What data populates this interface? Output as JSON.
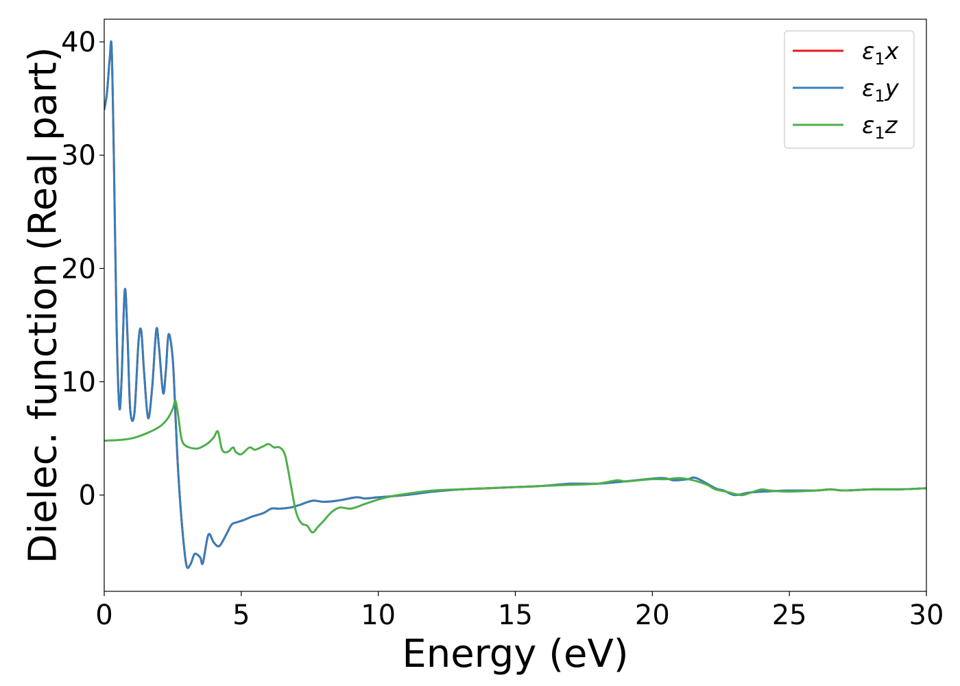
{
  "chart_data": {
    "type": "line",
    "title": "",
    "xlabel": "Energy (eV)",
    "ylabel": "Dielec. function (Real part)",
    "xlim": [
      0,
      30
    ],
    "ylim": [
      -8.5,
      42
    ],
    "xticks": [
      0,
      5,
      10,
      15,
      20,
      25,
      30
    ],
    "xtick_labels": [
      "0",
      "5",
      "10",
      "15",
      "20",
      "25",
      "30"
    ],
    "yticks": [
      0,
      10,
      20,
      30,
      40
    ],
    "ytick_labels": [
      "0",
      "10",
      "20",
      "30",
      "40"
    ],
    "grid": false,
    "legend_position": "top-right",
    "series": [
      {
        "name": "ε₁x",
        "legend_main": "ε",
        "legend_sub": "1",
        "legend_tail": "x",
        "color": "#e41a1c",
        "x": [
          0,
          0.1,
          0.2,
          0.27,
          0.35,
          0.45,
          0.55,
          0.63,
          0.75,
          0.85,
          0.95,
          1.1,
          1.25,
          1.35,
          1.45,
          1.6,
          1.75,
          1.9,
          2.0,
          2.15,
          2.25,
          2.35,
          2.5,
          2.6,
          2.7,
          2.85,
          3.0,
          3.15,
          3.3,
          3.5,
          3.6,
          3.8,
          4.0,
          4.2,
          4.45,
          4.65,
          4.85,
          5.1,
          5.4,
          5.8,
          6.1,
          6.4,
          6.8,
          7.1,
          7.6,
          8.0,
          8.5,
          9.2,
          9.5,
          10.0,
          11.0,
          12.0,
          13.0,
          14.0,
          15.0,
          16.0,
          17.0,
          18.0,
          19.0,
          20.3,
          20.8,
          21.3,
          21.6,
          22.3,
          22.6,
          23.0,
          23.5,
          24.0,
          25.0,
          26.0,
          26.5,
          27.0,
          28.0,
          29.0,
          30.0
        ],
        "y": [
          34,
          35.5,
          38.5,
          39.5,
          30,
          15,
          7.8,
          10,
          18.1,
          14,
          7.5,
          7.2,
          13.5,
          14.5,
          11,
          6.8,
          9.5,
          14.6,
          13,
          9,
          11,
          14.2,
          12,
          7,
          2,
          -3,
          -6.2,
          -6.1,
          -5.2,
          -5.5,
          -6,
          -3.5,
          -4.2,
          -4.5,
          -3.5,
          -2.6,
          -2.4,
          -2.2,
          -1.9,
          -1.6,
          -1.2,
          -1.2,
          -1.1,
          -0.9,
          -0.5,
          -0.6,
          -0.5,
          -0.2,
          -0.3,
          -0.2,
          0,
          0.3,
          0.5,
          0.6,
          0.7,
          0.8,
          1.0,
          1.0,
          1.2,
          1.5,
          1.3,
          1.4,
          1.5,
          0.6,
          0.4,
          0.0,
          0.2,
          0.3,
          0.4,
          0.4,
          0.5,
          0.4,
          0.5,
          0.5,
          0.6
        ]
      },
      {
        "name": "ε₁y",
        "legend_main": "ε",
        "legend_sub": "1",
        "legend_tail": "y",
        "color": "#377eb8",
        "x": [
          0,
          0.1,
          0.2,
          0.27,
          0.35,
          0.45,
          0.55,
          0.63,
          0.75,
          0.85,
          0.95,
          1.1,
          1.25,
          1.35,
          1.45,
          1.6,
          1.75,
          1.9,
          2.0,
          2.15,
          2.25,
          2.35,
          2.5,
          2.6,
          2.7,
          2.85,
          3.0,
          3.15,
          3.3,
          3.5,
          3.6,
          3.8,
          4.0,
          4.2,
          4.45,
          4.65,
          4.85,
          5.1,
          5.4,
          5.8,
          6.1,
          6.4,
          6.8,
          7.1,
          7.6,
          8.0,
          8.5,
          9.2,
          9.5,
          10.0,
          11.0,
          12.0,
          13.0,
          14.0,
          15.0,
          16.0,
          17.0,
          18.0,
          19.0,
          20.3,
          20.8,
          21.3,
          21.6,
          22.3,
          22.6,
          23.0,
          23.5,
          24.0,
          25.0,
          26.0,
          26.5,
          27.0,
          28.0,
          29.0,
          30.0
        ],
        "y": [
          34,
          35.5,
          38.5,
          39.5,
          30,
          15,
          7.8,
          10,
          18.1,
          14,
          7.5,
          7.2,
          13.5,
          14.5,
          11,
          6.8,
          9.5,
          14.6,
          13,
          9,
          11,
          14.2,
          12,
          7,
          2,
          -3,
          -6.2,
          -6.1,
          -5.2,
          -5.5,
          -6,
          -3.5,
          -4.2,
          -4.5,
          -3.5,
          -2.6,
          -2.4,
          -2.2,
          -1.9,
          -1.6,
          -1.2,
          -1.2,
          -1.1,
          -0.9,
          -0.5,
          -0.6,
          -0.5,
          -0.2,
          -0.3,
          -0.2,
          0,
          0.3,
          0.5,
          0.6,
          0.7,
          0.8,
          1.0,
          1.0,
          1.2,
          1.5,
          1.3,
          1.4,
          1.5,
          0.6,
          0.4,
          0.0,
          0.2,
          0.3,
          0.4,
          0.4,
          0.5,
          0.4,
          0.5,
          0.5,
          0.6
        ]
      },
      {
        "name": "ε₁z",
        "legend_main": "ε",
        "legend_sub": "1",
        "legend_tail": "z",
        "color": "#4daf4a",
        "x": [
          0,
          0.5,
          1.0,
          1.5,
          2.0,
          2.3,
          2.5,
          2.6,
          2.7,
          2.8,
          2.9,
          3.1,
          3.4,
          3.6,
          3.8,
          4.0,
          4.15,
          4.3,
          4.5,
          4.7,
          4.8,
          5.0,
          5.3,
          5.5,
          5.8,
          6.0,
          6.2,
          6.4,
          6.6,
          6.8,
          7.0,
          7.2,
          7.4,
          7.6,
          7.8,
          8.0,
          8.3,
          8.6,
          9.0,
          9.5,
          10.0,
          10.5,
          11.0,
          12.0,
          13.0,
          14.0,
          15.0,
          16.0,
          17.0,
          18.0,
          18.7,
          19.0,
          19.5,
          20.0,
          20.5,
          21.0,
          21.5,
          22.0,
          22.3,
          22.7,
          23.0,
          23.3,
          23.7,
          24.0,
          24.3,
          25.0,
          26.0,
          26.5,
          27.0,
          28.0,
          29.0,
          30.0
        ],
        "y": [
          4.8,
          4.85,
          5.0,
          5.4,
          6.0,
          6.7,
          7.6,
          8.3,
          7.0,
          5.2,
          4.5,
          4.2,
          4.1,
          4.3,
          4.6,
          5.1,
          5.6,
          4.0,
          3.8,
          4.2,
          3.8,
          3.6,
          4.2,
          4.0,
          4.3,
          4.5,
          4.2,
          4.2,
          3.5,
          1.0,
          -1.5,
          -2.5,
          -2.7,
          -3.3,
          -2.8,
          -2.3,
          -1.5,
          -1.1,
          -1.2,
          -0.8,
          -0.4,
          -0.1,
          0.1,
          0.4,
          0.5,
          0.6,
          0.7,
          0.8,
          0.9,
          1.0,
          1.3,
          1.2,
          1.3,
          1.4,
          1.4,
          1.5,
          1.3,
          0.9,
          0.5,
          0.3,
          0.1,
          0.0,
          0.3,
          0.5,
          0.4,
          0.3,
          0.4,
          0.5,
          0.4,
          0.5,
          0.5,
          0.6
        ]
      }
    ]
  }
}
